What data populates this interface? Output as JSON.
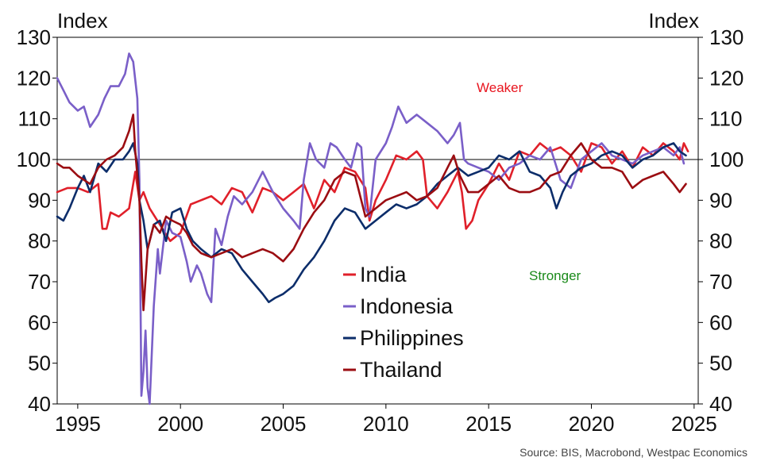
{
  "chart_data": {
    "type": "line",
    "ylabel_left": "Index",
    "ylabel_right": "Index",
    "xlim": [
      1994.0,
      2025.2
    ],
    "ylim": [
      40,
      130
    ],
    "x_ticks": [
      1995,
      2000,
      2005,
      2010,
      2015,
      2020,
      2025
    ],
    "y_ticks": [
      130,
      120,
      110,
      100,
      90,
      80,
      70,
      60,
      50,
      40
    ],
    "reference_line": 100,
    "grid": false,
    "legend_position": "center",
    "annotations": {
      "weaker": "Weaker",
      "stronger": "Stronger"
    },
    "colors": {
      "weaker": "#e8141e",
      "stronger": "#1a8a1a",
      "refline": "#000000",
      "frame": "#000000"
    },
    "series": [
      {
        "name": "India",
        "color": "#e0202a",
        "points": [
          [
            1994.0,
            92
          ],
          [
            1994.5,
            93
          ],
          [
            1995.0,
            93
          ],
          [
            1995.5,
            92
          ],
          [
            1996.0,
            94
          ],
          [
            1996.2,
            83
          ],
          [
            1996.4,
            83
          ],
          [
            1996.6,
            87
          ],
          [
            1997.0,
            86
          ],
          [
            1997.5,
            88
          ],
          [
            1997.8,
            97
          ],
          [
            1998.0,
            90
          ],
          [
            1998.2,
            92
          ],
          [
            1998.5,
            88
          ],
          [
            1999.0,
            84
          ],
          [
            1999.5,
            80
          ],
          [
            2000.0,
            82
          ],
          [
            2000.5,
            89
          ],
          [
            2001.0,
            90
          ],
          [
            2001.5,
            91
          ],
          [
            2002.0,
            89
          ],
          [
            2002.5,
            93
          ],
          [
            2003.0,
            92
          ],
          [
            2003.5,
            87
          ],
          [
            2004.0,
            93
          ],
          [
            2004.5,
            92
          ],
          [
            2005.0,
            90
          ],
          [
            2005.5,
            92
          ],
          [
            2006.0,
            94
          ],
          [
            2006.5,
            88
          ],
          [
            2007.0,
            95
          ],
          [
            2007.5,
            92
          ],
          [
            2008.0,
            98
          ],
          [
            2008.5,
            97
          ],
          [
            2009.0,
            93
          ],
          [
            2009.2,
            85
          ],
          [
            2009.5,
            90
          ],
          [
            2010.0,
            95
          ],
          [
            2010.5,
            101
          ],
          [
            2011.0,
            100
          ],
          [
            2011.5,
            102
          ],
          [
            2011.8,
            100
          ],
          [
            2012.0,
            91
          ],
          [
            2012.5,
            88
          ],
          [
            2013.0,
            92
          ],
          [
            2013.5,
            97
          ],
          [
            2013.7,
            92
          ],
          [
            2013.9,
            83
          ],
          [
            2014.2,
            85
          ],
          [
            2014.5,
            90
          ],
          [
            2015.0,
            94
          ],
          [
            2015.5,
            99
          ],
          [
            2016.0,
            95
          ],
          [
            2016.5,
            102
          ],
          [
            2017.0,
            101
          ],
          [
            2017.5,
            104
          ],
          [
            2018.0,
            102
          ],
          [
            2018.5,
            103
          ],
          [
            2019.0,
            101
          ],
          [
            2019.5,
            97
          ],
          [
            2020.0,
            104
          ],
          [
            2020.5,
            103
          ],
          [
            2021.0,
            99
          ],
          [
            2021.5,
            102
          ],
          [
            2022.0,
            98
          ],
          [
            2022.5,
            103
          ],
          [
            2023.0,
            101
          ],
          [
            2023.5,
            104
          ],
          [
            2024.0,
            102
          ],
          [
            2024.3,
            100
          ],
          [
            2024.5,
            104
          ],
          [
            2024.7,
            102
          ]
        ]
      },
      {
        "name": "Indonesia",
        "color": "#7a5fc8",
        "points": [
          [
            1994.0,
            120
          ],
          [
            1994.3,
            117
          ],
          [
            1994.6,
            114
          ],
          [
            1995.0,
            112
          ],
          [
            1995.3,
            113
          ],
          [
            1995.6,
            108
          ],
          [
            1996.0,
            111
          ],
          [
            1996.3,
            115
          ],
          [
            1996.6,
            118
          ],
          [
            1997.0,
            118
          ],
          [
            1997.3,
            121
          ],
          [
            1997.5,
            126
          ],
          [
            1997.7,
            124
          ],
          [
            1997.9,
            115
          ],
          [
            1998.0,
            95
          ],
          [
            1998.1,
            42
          ],
          [
            1998.2,
            48
          ],
          [
            1998.3,
            58
          ],
          [
            1998.4,
            44
          ],
          [
            1998.5,
            40
          ],
          [
            1998.7,
            64
          ],
          [
            1998.9,
            78
          ],
          [
            1999.0,
            72
          ],
          [
            1999.3,
            85
          ],
          [
            1999.6,
            82
          ],
          [
            2000.0,
            81
          ],
          [
            2000.3,
            75
          ],
          [
            2000.5,
            70
          ],
          [
            2000.8,
            74
          ],
          [
            2001.0,
            72
          ],
          [
            2001.3,
            67
          ],
          [
            2001.5,
            65
          ],
          [
            2001.7,
            83
          ],
          [
            2002.0,
            79
          ],
          [
            2002.3,
            86
          ],
          [
            2002.6,
            91
          ],
          [
            2003.0,
            89
          ],
          [
            2003.5,
            92
          ],
          [
            2004.0,
            97
          ],
          [
            2004.5,
            92
          ],
          [
            2005.0,
            88
          ],
          [
            2005.5,
            85
          ],
          [
            2005.8,
            83
          ],
          [
            2006.0,
            95
          ],
          [
            2006.3,
            104
          ],
          [
            2006.6,
            100
          ],
          [
            2007.0,
            98
          ],
          [
            2007.3,
            104
          ],
          [
            2007.6,
            103
          ],
          [
            2008.0,
            100
          ],
          [
            2008.3,
            98
          ],
          [
            2008.6,
            104
          ],
          [
            2008.8,
            103
          ],
          [
            2009.0,
            88
          ],
          [
            2009.2,
            86
          ],
          [
            2009.5,
            100
          ],
          [
            2010.0,
            104
          ],
          [
            2010.3,
            108
          ],
          [
            2010.6,
            113
          ],
          [
            2011.0,
            109
          ],
          [
            2011.5,
            111
          ],
          [
            2012.0,
            109
          ],
          [
            2012.5,
            107
          ],
          [
            2013.0,
            104
          ],
          [
            2013.3,
            106
          ],
          [
            2013.6,
            109
          ],
          [
            2013.8,
            100
          ],
          [
            2014.0,
            99
          ],
          [
            2014.5,
            98
          ],
          [
            2015.0,
            97
          ],
          [
            2015.5,
            95
          ],
          [
            2016.0,
            98
          ],
          [
            2016.5,
            99
          ],
          [
            2017.0,
            101
          ],
          [
            2017.5,
            100
          ],
          [
            2018.0,
            103
          ],
          [
            2018.5,
            95
          ],
          [
            2019.0,
            93
          ],
          [
            2019.5,
            100
          ],
          [
            2020.0,
            102
          ],
          [
            2020.5,
            104
          ],
          [
            2021.0,
            101
          ],
          [
            2021.5,
            100
          ],
          [
            2022.0,
            99
          ],
          [
            2022.5,
            101
          ],
          [
            2023.0,
            102
          ],
          [
            2023.5,
            103
          ],
          [
            2024.0,
            101
          ],
          [
            2024.3,
            103
          ],
          [
            2024.5,
            99
          ]
        ]
      },
      {
        "name": "Philippines",
        "color": "#0c2d6a",
        "points": [
          [
            1994.0,
            86
          ],
          [
            1994.3,
            85
          ],
          [
            1994.6,
            88
          ],
          [
            1995.0,
            93
          ],
          [
            1995.3,
            96
          ],
          [
            1995.6,
            92
          ],
          [
            1996.0,
            99
          ],
          [
            1996.4,
            97
          ],
          [
            1996.8,
            100
          ],
          [
            1997.2,
            100
          ],
          [
            1997.5,
            102
          ],
          [
            1997.7,
            104
          ],
          [
            1997.9,
            99
          ],
          [
            1998.0,
            90
          ],
          [
            1998.2,
            85
          ],
          [
            1998.4,
            78
          ],
          [
            1998.7,
            84
          ],
          [
            1999.0,
            85
          ],
          [
            1999.3,
            80
          ],
          [
            1999.6,
            87
          ],
          [
            2000.0,
            88
          ],
          [
            2000.3,
            83
          ],
          [
            2000.6,
            80
          ],
          [
            2001.0,
            78
          ],
          [
            2001.5,
            76
          ],
          [
            2002.0,
            78
          ],
          [
            2002.5,
            77
          ],
          [
            2003.0,
            73
          ],
          [
            2003.5,
            70
          ],
          [
            2004.0,
            67
          ],
          [
            2004.3,
            65
          ],
          [
            2004.6,
            66
          ],
          [
            2005.0,
            67
          ],
          [
            2005.5,
            69
          ],
          [
            2006.0,
            73
          ],
          [
            2006.5,
            76
          ],
          [
            2007.0,
            80
          ],
          [
            2007.5,
            85
          ],
          [
            2008.0,
            88
          ],
          [
            2008.5,
            87
          ],
          [
            2009.0,
            83
          ],
          [
            2009.5,
            85
          ],
          [
            2010.0,
            87
          ],
          [
            2010.5,
            89
          ],
          [
            2011.0,
            88
          ],
          [
            2011.5,
            89
          ],
          [
            2012.0,
            91
          ],
          [
            2012.5,
            94
          ],
          [
            2013.0,
            96
          ],
          [
            2013.5,
            98
          ],
          [
            2014.0,
            96
          ],
          [
            2014.5,
            97
          ],
          [
            2015.0,
            98
          ],
          [
            2015.5,
            101
          ],
          [
            2016.0,
            100
          ],
          [
            2016.5,
            102
          ],
          [
            2017.0,
            97
          ],
          [
            2017.5,
            96
          ],
          [
            2018.0,
            93
          ],
          [
            2018.3,
            88
          ],
          [
            2018.6,
            92
          ],
          [
            2019.0,
            96
          ],
          [
            2019.5,
            98
          ],
          [
            2020.0,
            99
          ],
          [
            2020.5,
            101
          ],
          [
            2021.0,
            102
          ],
          [
            2021.5,
            101
          ],
          [
            2022.0,
            98
          ],
          [
            2022.5,
            100
          ],
          [
            2023.0,
            101
          ],
          [
            2023.5,
            103
          ],
          [
            2024.0,
            104
          ],
          [
            2024.3,
            102
          ],
          [
            2024.6,
            101
          ]
        ]
      },
      {
        "name": "Thailand",
        "color": "#9b0d12",
        "points": [
          [
            1994.0,
            99
          ],
          [
            1994.3,
            98
          ],
          [
            1994.6,
            98
          ],
          [
            1995.0,
            96
          ],
          [
            1995.3,
            95
          ],
          [
            1995.6,
            94
          ],
          [
            1996.0,
            98
          ],
          [
            1996.4,
            100
          ],
          [
            1996.8,
            101
          ],
          [
            1997.2,
            103
          ],
          [
            1997.5,
            107
          ],
          [
            1997.7,
            111
          ],
          [
            1997.8,
            102
          ],
          [
            1997.9,
            96
          ],
          [
            1998.0,
            90
          ],
          [
            1998.1,
            75
          ],
          [
            1998.2,
            63
          ],
          [
            1998.4,
            78
          ],
          [
            1998.7,
            84
          ],
          [
            1999.0,
            82
          ],
          [
            1999.3,
            86
          ],
          [
            1999.6,
            85
          ],
          [
            2000.0,
            84
          ],
          [
            2000.3,
            82
          ],
          [
            2000.6,
            79
          ],
          [
            2001.0,
            77
          ],
          [
            2001.5,
            76
          ],
          [
            2002.0,
            77
          ],
          [
            2002.5,
            78
          ],
          [
            2003.0,
            76
          ],
          [
            2003.5,
            77
          ],
          [
            2004.0,
            78
          ],
          [
            2004.5,
            77
          ],
          [
            2005.0,
            75
          ],
          [
            2005.5,
            78
          ],
          [
            2006.0,
            83
          ],
          [
            2006.5,
            87
          ],
          [
            2007.0,
            90
          ],
          [
            2007.5,
            95
          ],
          [
            2008.0,
            97
          ],
          [
            2008.5,
            96
          ],
          [
            2009.0,
            86
          ],
          [
            2009.5,
            88
          ],
          [
            2010.0,
            90
          ],
          [
            2010.5,
            91
          ],
          [
            2011.0,
            92
          ],
          [
            2011.5,
            90
          ],
          [
            2012.0,
            91
          ],
          [
            2012.5,
            93
          ],
          [
            2013.0,
            98
          ],
          [
            2013.3,
            101
          ],
          [
            2013.6,
            96
          ],
          [
            2014.0,
            92
          ],
          [
            2014.5,
            92
          ],
          [
            2015.0,
            94
          ],
          [
            2015.5,
            96
          ],
          [
            2016.0,
            93
          ],
          [
            2016.5,
            92
          ],
          [
            2017.0,
            92
          ],
          [
            2017.5,
            93
          ],
          [
            2018.0,
            96
          ],
          [
            2018.5,
            97
          ],
          [
            2019.0,
            101
          ],
          [
            2019.5,
            104
          ],
          [
            2020.0,
            100
          ],
          [
            2020.5,
            98
          ],
          [
            2021.0,
            98
          ],
          [
            2021.5,
            97
          ],
          [
            2022.0,
            93
          ],
          [
            2022.5,
            95
          ],
          [
            2023.0,
            96
          ],
          [
            2023.5,
            97
          ],
          [
            2024.0,
            94
          ],
          [
            2024.3,
            92
          ],
          [
            2024.6,
            94
          ]
        ]
      }
    ]
  },
  "footer": {
    "source": "Source: BIS, Macrobond, Westpac Economics"
  }
}
